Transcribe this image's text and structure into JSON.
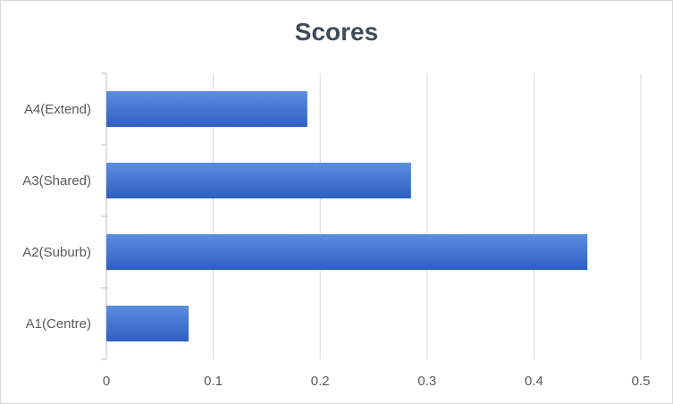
{
  "chart_data": {
    "type": "bar",
    "orientation": "horizontal",
    "title": "Scores",
    "xlabel": "",
    "ylabel": "",
    "categories": [
      "A1(Centre)",
      "A2(Suburb)",
      "A3(Shared)",
      "A4(Extend)"
    ],
    "values": [
      0.077,
      0.45,
      0.285,
      0.188
    ],
    "xlim": [
      0,
      0.5
    ],
    "xticks": [
      "0",
      "0.1",
      "0.2",
      "0.3",
      "0.4",
      "0.5"
    ],
    "grid": "vertical",
    "legend": "none",
    "bar_color_top": "#5b8ee0",
    "bar_color_bottom": "#2f5fc2"
  }
}
